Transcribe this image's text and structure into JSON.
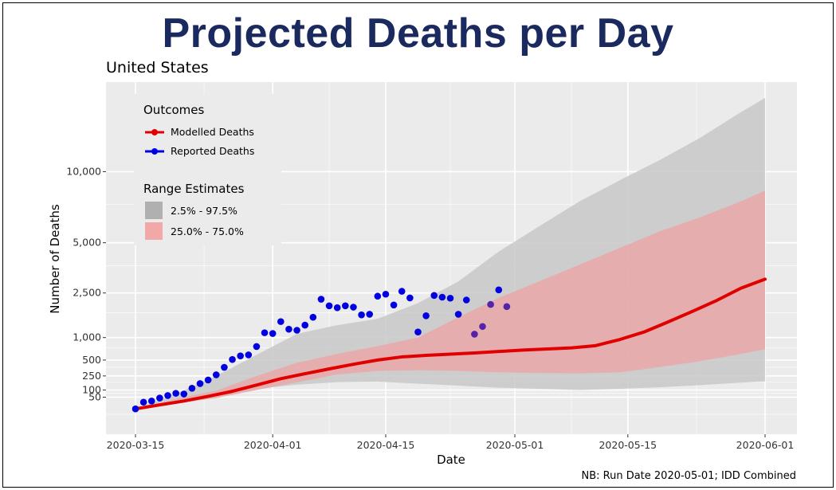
{
  "page": {
    "title": "Projected Deaths per Day",
    "footnote": "NB: Run Date 2020-05-01; IDD Combined"
  },
  "chart_data": {
    "type": "line",
    "title": "United States",
    "xlabel": "Date",
    "ylabel": "Number of Deaths",
    "x_range": [
      "2020-03-15",
      "2020-06-01"
    ],
    "y_scale": "sqrt",
    "y_range": [
      0,
      15000
    ],
    "x_ticks": [
      "2020-03-15",
      "2020-04-01",
      "2020-04-15",
      "2020-05-01",
      "2020-05-15",
      "2020-06-01"
    ],
    "y_ticks": [
      {
        "value": 50,
        "label": "50"
      },
      {
        "value": 100,
        "label": "100"
      },
      {
        "value": 250,
        "label": "250"
      },
      {
        "value": 500,
        "label": "500"
      },
      {
        "value": 1000,
        "label": "1,000"
      },
      {
        "value": 2500,
        "label": "2,500"
      },
      {
        "value": 5000,
        "label": "5,000"
      },
      {
        "value": 10000,
        "label": "10,000"
      }
    ],
    "grid": true,
    "legend": {
      "placement": "top-left",
      "outcomes_title": "Outcomes",
      "outcomes": [
        {
          "label": "Modelled Deaths",
          "color": "#e00000"
        },
        {
          "label": "Reported Deaths",
          "color": "#0000e0"
        }
      ],
      "ranges_title": "Range Estimates",
      "ranges": [
        {
          "label": "2.5% - 97.5%",
          "color": "#b0b0b0"
        },
        {
          "label": "25.0% - 75.0%",
          "color": "#f0a8a8"
        }
      ]
    },
    "colors": {
      "panel": "#ebebeb",
      "grid": "#ffffff",
      "band95": "#c8c8c8",
      "band50": "#e8aaaa",
      "modelled": "#e00000",
      "reported": "#0000e0",
      "reported_late": "#5522aa"
    },
    "series": [
      {
        "name": "Modelled Deaths",
        "kind": "line",
        "points": [
          [
            "2020-03-15",
            5
          ],
          [
            "2020-03-18",
            15
          ],
          [
            "2020-03-21",
            30
          ],
          [
            "2020-03-24",
            55
          ],
          [
            "2020-03-27",
            90
          ],
          [
            "2020-03-30",
            145
          ],
          [
            "2020-04-02",
            215
          ],
          [
            "2020-04-05",
            280
          ],
          [
            "2020-04-08",
            350
          ],
          [
            "2020-04-11",
            425
          ],
          [
            "2020-04-14",
            500
          ],
          [
            "2020-04-17",
            560
          ],
          [
            "2020-04-20",
            590
          ],
          [
            "2020-04-23",
            615
          ],
          [
            "2020-04-26",
            640
          ],
          [
            "2020-04-29",
            670
          ],
          [
            "2020-05-02",
            700
          ],
          [
            "2020-05-05",
            725
          ],
          [
            "2020-05-08",
            750
          ],
          [
            "2020-05-11",
            800
          ],
          [
            "2020-05-14",
            950
          ],
          [
            "2020-05-17",
            1150
          ],
          [
            "2020-05-20",
            1450
          ],
          [
            "2020-05-23",
            1800
          ],
          [
            "2020-05-26",
            2200
          ],
          [
            "2020-05-29",
            2700
          ],
          [
            "2020-06-01",
            3100
          ]
        ]
      },
      {
        "name": "Reported Deaths",
        "kind": "points",
        "points": [
          [
            "2020-03-15",
            5
          ],
          [
            "2020-03-16",
            25
          ],
          [
            "2020-03-17",
            30
          ],
          [
            "2020-03-18",
            45
          ],
          [
            "2020-03-19",
            60
          ],
          [
            "2020-03-20",
            75
          ],
          [
            "2020-03-21",
            70
          ],
          [
            "2020-03-22",
            115
          ],
          [
            "2020-03-23",
            160
          ],
          [
            "2020-03-24",
            200
          ],
          [
            "2020-03-25",
            265
          ],
          [
            "2020-03-26",
            375
          ],
          [
            "2020-03-27",
            510
          ],
          [
            "2020-03-28",
            580
          ],
          [
            "2020-03-29",
            600
          ],
          [
            "2020-03-30",
            780
          ],
          [
            "2020-03-31",
            1130
          ],
          [
            "2020-04-01",
            1110
          ],
          [
            "2020-04-02",
            1460
          ],
          [
            "2020-04-03",
            1230
          ],
          [
            "2020-04-04",
            1200
          ],
          [
            "2020-04-05",
            1350
          ],
          [
            "2020-04-06",
            1600
          ],
          [
            "2020-04-07",
            2250
          ],
          [
            "2020-04-08",
            2000
          ],
          [
            "2020-04-09",
            1930
          ],
          [
            "2020-04-10",
            2000
          ],
          [
            "2020-04-11",
            1950
          ],
          [
            "2020-04-12",
            1680
          ],
          [
            "2020-04-13",
            1700
          ],
          [
            "2020-04-14",
            2370
          ],
          [
            "2020-04-15",
            2450
          ],
          [
            "2020-04-16",
            2030
          ],
          [
            "2020-04-17",
            2570
          ],
          [
            "2020-04-18",
            2300
          ],
          [
            "2020-04-19",
            1150
          ],
          [
            "2020-04-20",
            1650
          ],
          [
            "2020-04-21",
            2400
          ],
          [
            "2020-04-22",
            2330
          ],
          [
            "2020-04-23",
            2290
          ],
          [
            "2020-04-24",
            1700
          ],
          [
            "2020-04-25",
            2220
          ],
          [
            "2020-04-26",
            1090
          ],
          [
            "2020-04-27",
            1310
          ],
          [
            "2020-04-28",
            2050
          ],
          [
            "2020-04-29",
            2630
          ],
          [
            "2020-04-30",
            1970
          ]
        ]
      }
    ],
    "bands": [
      {
        "name": "2.5% - 97.5%",
        "points": [
          [
            "2020-03-15",
            5,
            5
          ],
          [
            "2020-03-20",
            30,
            70
          ],
          [
            "2020-03-25",
            70,
            250
          ],
          [
            "2020-03-30",
            110,
            600
          ],
          [
            "2020-04-04",
            150,
            1100
          ],
          [
            "2020-04-09",
            175,
            1350
          ],
          [
            "2020-04-14",
            180,
            1550
          ],
          [
            "2020-04-19",
            160,
            2100
          ],
          [
            "2020-04-24",
            140,
            3000
          ],
          [
            "2020-04-29",
            120,
            4500
          ],
          [
            "2020-05-04",
            110,
            6000
          ],
          [
            "2020-05-09",
            100,
            7700
          ],
          [
            "2020-05-14",
            110,
            9300
          ],
          [
            "2020-05-19",
            125,
            11000
          ],
          [
            "2020-05-24",
            145,
            13000
          ],
          [
            "2020-05-29",
            170,
            15500
          ],
          [
            "2020-06-01",
            185,
            17000
          ]
        ]
      },
      {
        "name": "25.0% - 75.0%",
        "points": [
          [
            "2020-03-15",
            5,
            5
          ],
          [
            "2020-03-20",
            20,
            40
          ],
          [
            "2020-03-25",
            45,
            95
          ],
          [
            "2020-03-30",
            100,
            250
          ],
          [
            "2020-04-04",
            175,
            450
          ],
          [
            "2020-04-09",
            270,
            620
          ],
          [
            "2020-04-14",
            320,
            790
          ],
          [
            "2020-04-19",
            330,
            1000
          ],
          [
            "2020-04-24",
            320,
            1600
          ],
          [
            "2020-04-29",
            300,
            2300
          ],
          [
            "2020-05-04",
            290,
            3000
          ],
          [
            "2020-05-09",
            285,
            3800
          ],
          [
            "2020-05-14",
            300,
            4700
          ],
          [
            "2020-05-19",
            380,
            5700
          ],
          [
            "2020-05-24",
            480,
            6600
          ],
          [
            "2020-05-29",
            620,
            7700
          ],
          [
            "2020-06-01",
            720,
            8500
          ]
        ]
      }
    ]
  }
}
